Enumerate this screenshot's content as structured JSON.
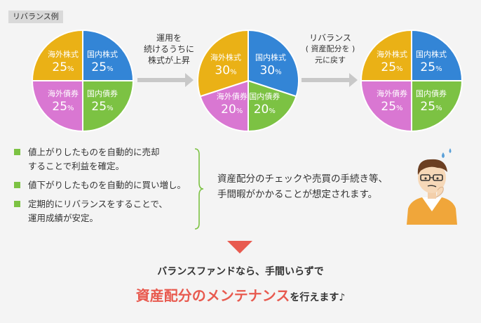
{
  "tag": "リバランス例",
  "pies": [
    {
      "slices": [
        {
          "label": "国内株式",
          "value": 25,
          "color": "#3385d6"
        },
        {
          "label": "国内債券",
          "value": 25,
          "color": "#7cc243"
        },
        {
          "label": "海外債券",
          "value": 25,
          "color": "#d977d2"
        },
        {
          "label": "海外株式",
          "value": 25,
          "color": "#eab116"
        }
      ]
    },
    {
      "slices": [
        {
          "label": "国内株式",
          "value": 30,
          "color": "#3385d6"
        },
        {
          "label": "国内債券",
          "value": 20,
          "color": "#7cc243"
        },
        {
          "label": "海外債券",
          "value": 20,
          "color": "#d977d2"
        },
        {
          "label": "海外株式",
          "value": 30,
          "color": "#eab116"
        }
      ]
    },
    {
      "slices": [
        {
          "label": "国内株式",
          "value": 25,
          "color": "#3385d6"
        },
        {
          "label": "国内債券",
          "value": 25,
          "color": "#7cc243"
        },
        {
          "label": "海外債券",
          "value": 25,
          "color": "#d977d2"
        },
        {
          "label": "海外株式",
          "value": 25,
          "color": "#eab116"
        }
      ]
    }
  ],
  "percent_sign": "%",
  "arrow1": {
    "lines": [
      "運用を",
      "続けるうちに",
      "株式が上昇"
    ]
  },
  "arrow2": {
    "lines": [
      "リバランス",
      "資産配分を",
      "元に戻す"
    ]
  },
  "bullets": [
    [
      "値上がりしたものを自動的に売却",
      "することで利益を確定。"
    ],
    [
      "値下がりしたものを自動的に買い増し。"
    ],
    [
      "定期的にリバランスをすることで、",
      "運用成績が安定。"
    ]
  ],
  "note": [
    "資産配分のチェックや売買の手続き等、",
    "手間暇がかかることが想定されます。"
  ],
  "conclusion": {
    "line1": "バランスファンドなら、手間いらずで",
    "highlight": "資産配分のメンテナンス",
    "suffix": "を行えます♪"
  },
  "colors": {
    "triangle": "#e85a4f",
    "bullet": "#7cc243",
    "brace": "#7cc243",
    "arrow": "#c8c8c8"
  }
}
